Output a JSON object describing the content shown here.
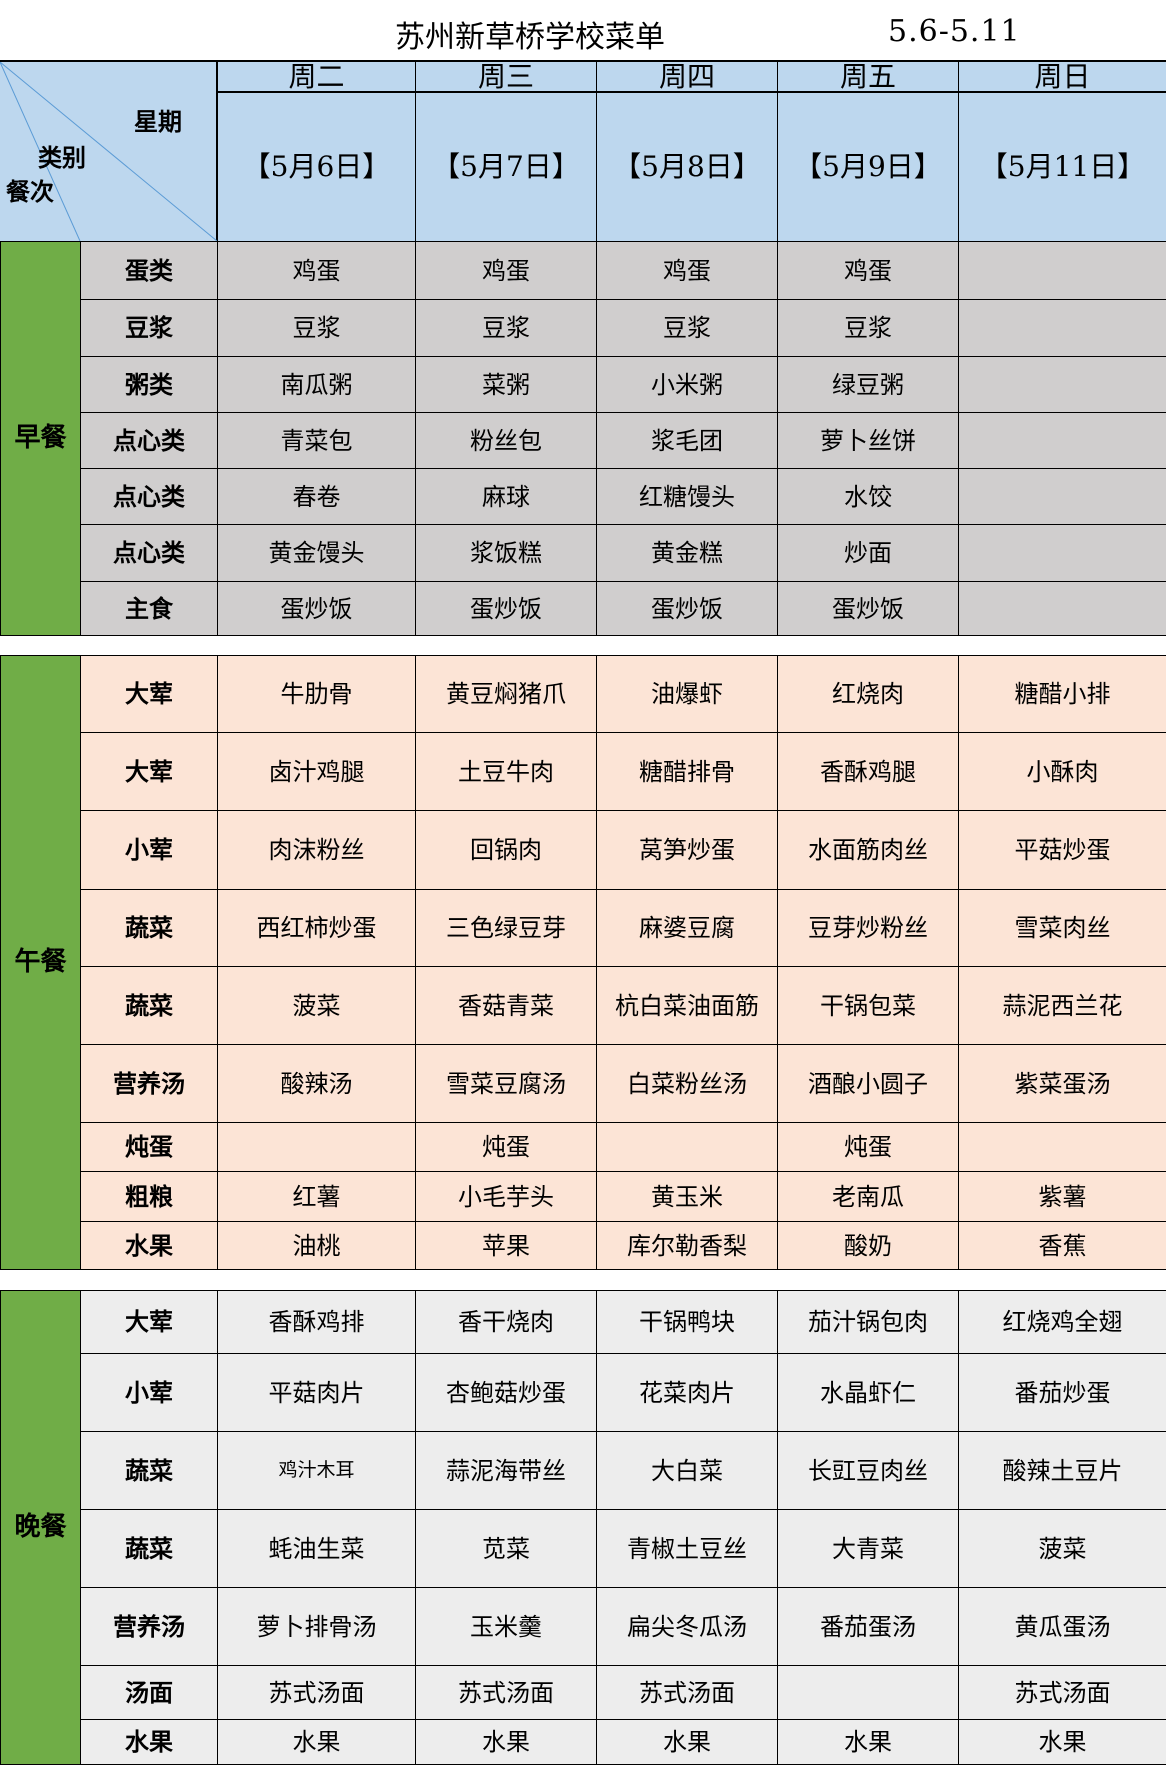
{
  "title": "苏州新草桥学校菜单",
  "date_range": "5.6-5.11",
  "header": {
    "corner": {
      "week": "星期",
      "category": "类别",
      "meal": "餐次"
    },
    "days": [
      {
        "day": "周二",
        "date": "【5月6日】"
      },
      {
        "day": "周三",
        "date": "【5月7日】"
      },
      {
        "day": "周四",
        "date": "【5月8日】"
      },
      {
        "day": "周五",
        "date": "【5月9日】"
      },
      {
        "day": "周日",
        "date": "【5月11日】"
      }
    ]
  },
  "colors": {
    "header": "#bdd7ee",
    "meal_label": "#70ad47",
    "breakfast": "#d0cece",
    "lunch": "#fce4d6",
    "dinner": "#ededed"
  },
  "sections": [
    {
      "meal": "早餐",
      "rows": [
        {
          "category": "蛋类",
          "cells": [
            "鸡蛋",
            "鸡蛋",
            "鸡蛋",
            "鸡蛋",
            ""
          ]
        },
        {
          "category": "豆浆",
          "cells": [
            "豆浆",
            "豆浆",
            "豆浆",
            "豆浆",
            ""
          ]
        },
        {
          "category": "粥类",
          "cells": [
            "南瓜粥",
            "菜粥",
            "小米粥",
            "绿豆粥",
            ""
          ]
        },
        {
          "category": "点心类",
          "cells": [
            "青菜包",
            "粉丝包",
            "浆毛团",
            "萝卜丝饼",
            ""
          ]
        },
        {
          "category": "点心类",
          "cells": [
            "春卷",
            "麻球",
            "红糖馒头",
            "水饺",
            ""
          ]
        },
        {
          "category": "点心类",
          "cells": [
            "黄金馒头",
            "浆饭糕",
            "黄金糕",
            "炒面",
            ""
          ]
        },
        {
          "category": "主食",
          "cells": [
            "蛋炒饭",
            "蛋炒饭",
            "蛋炒饭",
            "蛋炒饭",
            ""
          ]
        }
      ]
    },
    {
      "meal": "午餐",
      "rows": [
        {
          "category": "大荤",
          "cells": [
            "牛肋骨",
            "黄豆焖猪爪",
            "油爆虾",
            "红烧肉",
            "糖醋小排"
          ]
        },
        {
          "category": "大荤",
          "cells": [
            "卤汁鸡腿",
            "土豆牛肉",
            "糖醋排骨",
            "香酥鸡腿",
            "小酥肉"
          ]
        },
        {
          "category": "小荤",
          "cells": [
            "肉沫粉丝",
            "回锅肉",
            "莴笋炒蛋",
            "水面筋肉丝",
            "平菇炒蛋"
          ]
        },
        {
          "category": "蔬菜",
          "cells": [
            "西红柿炒蛋",
            "三色绿豆芽",
            "麻婆豆腐",
            "豆芽炒粉丝",
            "雪菜肉丝"
          ]
        },
        {
          "category": "蔬菜",
          "cells": [
            "菠菜",
            "香菇青菜",
            "杭白菜油面筋",
            "干锅包菜",
            "蒜泥西兰花"
          ]
        },
        {
          "category": "营养汤",
          "cells": [
            "酸辣汤",
            "雪菜豆腐汤",
            "白菜粉丝汤",
            "酒酿小圆子",
            "紫菜蛋汤"
          ]
        },
        {
          "category": "炖蛋",
          "cells": [
            "",
            "炖蛋",
            "",
            "炖蛋",
            ""
          ]
        },
        {
          "category": "粗粮",
          "cells": [
            "红薯",
            "小毛芋头",
            "黄玉米",
            "老南瓜",
            "紫薯"
          ]
        },
        {
          "category": "水果",
          "cells": [
            "油桃",
            "苹果",
            "库尔勒香梨",
            "酸奶",
            "香蕉"
          ]
        }
      ]
    },
    {
      "meal": "晚餐",
      "rows": [
        {
          "category": "大荤",
          "cells": [
            "香酥鸡排",
            "香干烧肉",
            "干锅鸭块",
            "茄汁锅包肉",
            "红烧鸡全翅"
          ]
        },
        {
          "category": "小荤",
          "cells": [
            "平菇肉片",
            "杏鲍菇炒蛋",
            "花菜肉片",
            "水晶虾仁",
            "番茄炒蛋"
          ]
        },
        {
          "category": "蔬菜",
          "cells": [
            "鸡汁木耳",
            "蒜泥海带丝",
            "大白菜",
            "长豇豆肉丝",
            "酸辣土豆片"
          ]
        },
        {
          "category": "蔬菜",
          "cells": [
            "蚝油生菜",
            "苋菜",
            "青椒土豆丝",
            "大青菜",
            "菠菜"
          ]
        },
        {
          "category": "营养汤",
          "cells": [
            "萝卜排骨汤",
            "玉米羹",
            "扁尖冬瓜汤",
            "番茄蛋汤",
            "黄瓜蛋汤"
          ]
        },
        {
          "category": "汤面",
          "cells": [
            "苏式汤面",
            "苏式汤面",
            "苏式汤面",
            "",
            "苏式汤面"
          ]
        },
        {
          "category": "水果",
          "cells": [
            "水果",
            "水果",
            "水果",
            "水果",
            "水果"
          ]
        }
      ]
    }
  ]
}
